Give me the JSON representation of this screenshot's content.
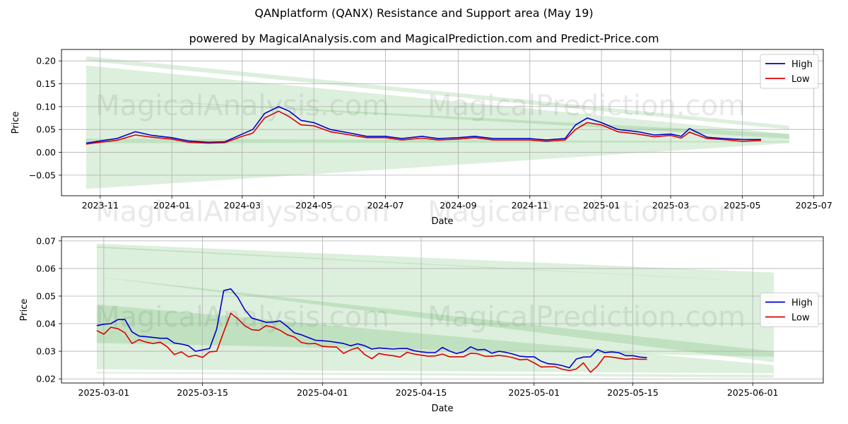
{
  "title": "QANplatform (QANX) Resistance and Support area (May 19)",
  "subtitle": "powered by MagicalAnalysis.com and MagicalPrediction.com and Predict-Price.com",
  "watermarks": [
    "MagicalAnalysis.com",
    "MagicalPrediction.com"
  ],
  "colors": {
    "high": "#0000cc",
    "low": "#dd0000",
    "band": "#2e9e2e",
    "grid": "#b0b0b0"
  },
  "chart_data": [
    {
      "type": "line",
      "xlabel": "Date",
      "ylabel": "Price",
      "xlim": [
        "2023-09-29",
        "2025-07-09"
      ],
      "ylim": [
        -0.095,
        0.225
      ],
      "grid": true,
      "legend": "top-right",
      "xtick_labels": [
        "2023-11",
        "2024-01",
        "2024-03",
        "2024-05",
        "2024-07",
        "2024-09",
        "2024-11",
        "2025-01",
        "2025-03",
        "2025-05",
        "2025-07"
      ],
      "ytick_labels": [
        "−0.05",
        "0.00",
        "0.05",
        "0.10",
        "0.15",
        "0.20"
      ],
      "ytick_values": [
        -0.05,
        0.0,
        0.05,
        0.1,
        0.15,
        0.2
      ],
      "xtick_dates": [
        "2023-11-01",
        "2024-01-01",
        "2024-03-01",
        "2024-05-01",
        "2024-07-01",
        "2024-09-01",
        "2024-11-01",
        "2025-01-01",
        "2025-03-01",
        "2025-05-01",
        "2025-07-01"
      ],
      "bands": [
        {
          "x": [
            "2023-10-20",
            "2025-06-10"
          ],
          "upper": [
            0.21,
            0.058
          ],
          "lower": [
            0.2,
            0.05
          ]
        },
        {
          "x": [
            "2023-10-20",
            "2025-06-10"
          ],
          "upper": [
            0.19,
            0.04
          ],
          "lower": [
            0.12,
            0.03
          ]
        },
        {
          "x": [
            "2023-10-20",
            "2025-06-10"
          ],
          "upper": [
            0.12,
            0.04
          ],
          "lower": [
            0.02,
            0.022
          ]
        },
        {
          "x": [
            "2023-10-20",
            "2025-06-10"
          ],
          "upper": [
            0.03,
            0.024
          ],
          "lower": [
            -0.08,
            0.02
          ]
        }
      ],
      "series": [
        {
          "name": "High",
          "x": [
            "2023-10-20",
            "2023-11-01",
            "2023-11-15",
            "2023-12-01",
            "2023-12-15",
            "2024-01-01",
            "2024-01-15",
            "2024-02-01",
            "2024-02-15",
            "2024-03-01",
            "2024-03-10",
            "2024-03-20",
            "2024-04-01",
            "2024-04-10",
            "2024-04-20",
            "2024-05-01",
            "2024-05-15",
            "2024-06-01",
            "2024-06-15",
            "2024-07-01",
            "2024-07-15",
            "2024-08-01",
            "2024-08-15",
            "2024-09-01",
            "2024-09-15",
            "2024-10-01",
            "2024-10-15",
            "2024-11-01",
            "2024-11-15",
            "2024-12-01",
            "2024-12-10",
            "2024-12-20",
            "2025-01-01",
            "2025-01-15",
            "2025-02-01",
            "2025-02-15",
            "2025-03-01",
            "2025-03-10",
            "2025-03-17",
            "2025-04-01",
            "2025-04-15",
            "2025-05-01",
            "2025-05-17"
          ],
          "values": [
            0.02,
            0.025,
            0.03,
            0.045,
            0.037,
            0.032,
            0.025,
            0.022,
            0.023,
            0.04,
            0.05,
            0.085,
            0.1,
            0.09,
            0.07,
            0.065,
            0.05,
            0.042,
            0.035,
            0.035,
            0.03,
            0.035,
            0.03,
            0.032,
            0.035,
            0.03,
            0.03,
            0.03,
            0.027,
            0.03,
            0.06,
            0.075,
            0.065,
            0.05,
            0.045,
            0.038,
            0.04,
            0.035,
            0.052,
            0.033,
            0.03,
            0.028,
            0.028
          ]
        },
        {
          "name": "Low",
          "x": [
            "2023-10-20",
            "2023-11-01",
            "2023-11-15",
            "2023-12-01",
            "2023-12-15",
            "2024-01-01",
            "2024-01-15",
            "2024-02-01",
            "2024-02-15",
            "2024-03-01",
            "2024-03-10",
            "2024-03-20",
            "2024-04-01",
            "2024-04-10",
            "2024-04-20",
            "2024-05-01",
            "2024-05-15",
            "2024-06-01",
            "2024-06-15",
            "2024-07-01",
            "2024-07-15",
            "2024-08-01",
            "2024-08-15",
            "2024-09-01",
            "2024-09-15",
            "2024-10-01",
            "2024-10-15",
            "2024-11-01",
            "2024-11-15",
            "2024-12-01",
            "2024-12-10",
            "2024-12-20",
            "2025-01-01",
            "2025-01-15",
            "2025-02-01",
            "2025-02-15",
            "2025-03-01",
            "2025-03-10",
            "2025-03-17",
            "2025-04-01",
            "2025-04-15",
            "2025-05-01",
            "2025-05-17"
          ],
          "values": [
            0.018,
            0.022,
            0.026,
            0.038,
            0.033,
            0.029,
            0.022,
            0.02,
            0.021,
            0.035,
            0.042,
            0.075,
            0.09,
            0.078,
            0.06,
            0.058,
            0.045,
            0.038,
            0.032,
            0.032,
            0.027,
            0.031,
            0.027,
            0.029,
            0.032,
            0.027,
            0.027,
            0.027,
            0.024,
            0.027,
            0.05,
            0.065,
            0.06,
            0.045,
            0.04,
            0.034,
            0.037,
            0.031,
            0.044,
            0.03,
            0.028,
            0.024,
            0.026
          ]
        }
      ]
    },
    {
      "type": "line",
      "xlabel": "Date",
      "ylabel": "Price",
      "xlim": [
        "2025-02-23",
        "2025-06-11"
      ],
      "ylim": [
        0.0185,
        0.0715
      ],
      "grid": true,
      "legend": "center-right",
      "xtick_labels": [
        "2025-03-01",
        "2025-03-15",
        "2025-04-01",
        "2025-04-15",
        "2025-05-01",
        "2025-05-15",
        "2025-06-01"
      ],
      "xtick_dates": [
        "2025-03-01",
        "2025-03-15",
        "2025-04-01",
        "2025-04-15",
        "2025-05-01",
        "2025-05-15",
        "2025-06-01"
      ],
      "ytick_labels": [
        "0.02",
        "0.03",
        "0.04",
        "0.05",
        "0.06",
        "0.07"
      ],
      "ytick_values": [
        0.02,
        0.03,
        0.04,
        0.05,
        0.06,
        0.07
      ],
      "bands": [
        {
          "x": [
            "2025-02-28",
            "2025-06-04"
          ],
          "upper": [
            0.069,
            0.0585
          ],
          "lower": [
            0.0675,
            0.055
          ]
        },
        {
          "x": [
            "2025-02-28",
            "2025-06-04"
          ],
          "upper": [
            0.068,
            0.055
          ],
          "lower": [
            0.057,
            0.026
          ]
        },
        {
          "x": [
            "2025-02-28",
            "2025-06-04"
          ],
          "upper": [
            0.057,
            0.03
          ],
          "lower": [
            0.033,
            0.028
          ]
        },
        {
          "x": [
            "2025-02-28",
            "2025-06-04"
          ],
          "upper": [
            0.047,
            0.025
          ],
          "lower": [
            0.0235,
            0.022
          ]
        },
        {
          "x": [
            "2025-02-28",
            "2025-06-04"
          ],
          "upper": [
            0.0225,
            0.0215
          ],
          "lower": [
            0.022,
            0.0205
          ]
        }
      ],
      "series": [
        {
          "name": "High",
          "x": [
            "2025-02-28",
            "2025-03-01",
            "2025-03-02",
            "2025-03-03",
            "2025-03-04",
            "2025-03-05",
            "2025-03-06",
            "2025-03-07",
            "2025-03-08",
            "2025-03-09",
            "2025-03-10",
            "2025-03-11",
            "2025-03-12",
            "2025-03-13",
            "2025-03-14",
            "2025-03-15",
            "2025-03-16",
            "2025-03-17",
            "2025-03-18",
            "2025-03-19",
            "2025-03-20",
            "2025-03-21",
            "2025-03-22",
            "2025-03-23",
            "2025-03-24",
            "2025-03-25",
            "2025-03-26",
            "2025-03-27",
            "2025-03-28",
            "2025-03-29",
            "2025-03-30",
            "2025-03-31",
            "2025-04-01",
            "2025-04-02",
            "2025-04-03",
            "2025-04-04",
            "2025-04-05",
            "2025-04-06",
            "2025-04-07",
            "2025-04-08",
            "2025-04-09",
            "2025-04-10",
            "2025-04-11",
            "2025-04-12",
            "2025-04-13",
            "2025-04-14",
            "2025-04-15",
            "2025-04-16",
            "2025-04-17",
            "2025-04-18",
            "2025-04-19",
            "2025-04-20",
            "2025-04-21",
            "2025-04-22",
            "2025-04-23",
            "2025-04-24",
            "2025-04-25",
            "2025-04-26",
            "2025-04-27",
            "2025-04-28",
            "2025-04-29",
            "2025-04-30",
            "2025-05-01",
            "2025-05-02",
            "2025-05-03",
            "2025-05-04",
            "2025-05-05",
            "2025-05-06",
            "2025-05-07",
            "2025-05-08",
            "2025-05-09",
            "2025-05-10",
            "2025-05-11",
            "2025-05-12",
            "2025-05-13",
            "2025-05-14",
            "2025-05-15",
            "2025-05-16",
            "2025-05-17"
          ],
          "values": [
            0.0393,
            0.0398,
            0.04,
            0.0415,
            0.0415,
            0.037,
            0.0355,
            0.0353,
            0.035,
            0.0347,
            0.0347,
            0.033,
            0.0326,
            0.032,
            0.03,
            0.0305,
            0.031,
            0.038,
            0.052,
            0.0526,
            0.0495,
            0.045,
            0.042,
            0.0413,
            0.0405,
            0.0406,
            0.041,
            0.039,
            0.0367,
            0.036,
            0.035,
            0.034,
            0.0338,
            0.0336,
            0.0332,
            0.0328,
            0.032,
            0.0327,
            0.032,
            0.0308,
            0.0312,
            0.031,
            0.0308,
            0.031,
            0.031,
            0.0302,
            0.0298,
            0.0295,
            0.0295,
            0.0314,
            0.0301,
            0.0292,
            0.0298,
            0.0316,
            0.0305,
            0.0307,
            0.0293,
            0.03,
            0.0296,
            0.029,
            0.0282,
            0.028,
            0.028,
            0.0264,
            0.0255,
            0.0253,
            0.0248,
            0.024,
            0.0272,
            0.0279,
            0.028,
            0.0306,
            0.0295,
            0.0298,
            0.0295,
            0.0284,
            0.0284,
            0.0279,
            0.0277
          ]
        },
        {
          "name": "Low",
          "x": [
            "2025-02-28",
            "2025-03-01",
            "2025-03-02",
            "2025-03-03",
            "2025-03-04",
            "2025-03-05",
            "2025-03-06",
            "2025-03-07",
            "2025-03-08",
            "2025-03-09",
            "2025-03-10",
            "2025-03-11",
            "2025-03-12",
            "2025-03-13",
            "2025-03-14",
            "2025-03-15",
            "2025-03-16",
            "2025-03-17",
            "2025-03-18",
            "2025-03-19",
            "2025-03-20",
            "2025-03-21",
            "2025-03-22",
            "2025-03-23",
            "2025-03-24",
            "2025-03-25",
            "2025-03-26",
            "2025-03-27",
            "2025-03-28",
            "2025-03-29",
            "2025-03-30",
            "2025-03-31",
            "2025-04-01",
            "2025-04-02",
            "2025-04-03",
            "2025-04-04",
            "2025-04-05",
            "2025-04-06",
            "2025-04-07",
            "2025-04-08",
            "2025-04-09",
            "2025-04-10",
            "2025-04-11",
            "2025-04-12",
            "2025-04-13",
            "2025-04-14",
            "2025-04-15",
            "2025-04-16",
            "2025-04-17",
            "2025-04-18",
            "2025-04-19",
            "2025-04-20",
            "2025-04-21",
            "2025-04-22",
            "2025-04-23",
            "2025-04-24",
            "2025-04-25",
            "2025-04-26",
            "2025-04-27",
            "2025-04-28",
            "2025-04-29",
            "2025-04-30",
            "2025-05-01",
            "2025-05-02",
            "2025-05-03",
            "2025-05-04",
            "2025-05-05",
            "2025-05-06",
            "2025-05-07",
            "2025-05-08",
            "2025-05-09",
            "2025-05-10",
            "2025-05-11",
            "2025-05-12",
            "2025-05-13",
            "2025-05-14",
            "2025-05-15",
            "2025-05-16",
            "2025-05-17"
          ],
          "values": [
            0.0375,
            0.0362,
            0.0387,
            0.0382,
            0.0367,
            0.0328,
            0.0342,
            0.0333,
            0.0328,
            0.0333,
            0.0316,
            0.0288,
            0.0298,
            0.028,
            0.0286,
            0.0278,
            0.0298,
            0.03,
            0.037,
            0.0438,
            0.0418,
            0.0392,
            0.0378,
            0.0376,
            0.0393,
            0.0387,
            0.0376,
            0.036,
            0.0352,
            0.0332,
            0.0327,
            0.0328,
            0.0318,
            0.0316,
            0.0315,
            0.0292,
            0.0305,
            0.0313,
            0.0288,
            0.0273,
            0.0292,
            0.0287,
            0.0284,
            0.0279,
            0.0296,
            0.029,
            0.0286,
            0.0282,
            0.0283,
            0.029,
            0.028,
            0.028,
            0.028,
            0.0293,
            0.0291,
            0.0282,
            0.0282,
            0.0285,
            0.0282,
            0.0277,
            0.0269,
            0.0271,
            0.0258,
            0.0243,
            0.0244,
            0.0244,
            0.0235,
            0.023,
            0.0236,
            0.0258,
            0.0224,
            0.0247,
            0.0281,
            0.0279,
            0.0275,
            0.0271,
            0.0273,
            0.0271,
            0.0271
          ]
        }
      ]
    }
  ]
}
